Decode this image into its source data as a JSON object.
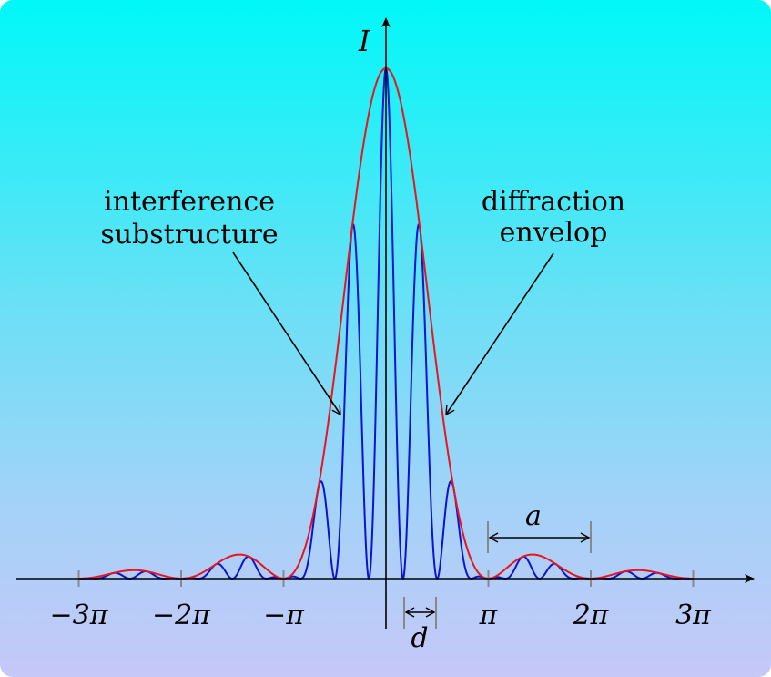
{
  "colors": {
    "envelope": "#e8141e",
    "substructure": "#0a14d2",
    "axis": "#000000",
    "tick": "#888888",
    "background_top": "#00f8f8",
    "background_bottom": "#c6c8f8"
  },
  "labels": {
    "y_axis": "I",
    "interference_line1": "interference",
    "interference_line2": "substructure",
    "diffraction_line1": "diffraction",
    "diffraction_line2": "envelop",
    "a": "a",
    "d": "d"
  },
  "ticks": [
    {
      "value": -3,
      "label": "−3π"
    },
    {
      "value": -2,
      "label": "−2π"
    },
    {
      "value": -1,
      "label": "−π"
    },
    {
      "value": 1,
      "label": "π"
    },
    {
      "value": 2,
      "label": "2π"
    },
    {
      "value": 3,
      "label": "3π"
    }
  ],
  "physics": {
    "envelope": "sinc squared of x (single-slit diffraction)",
    "substructure": "envelope multiplied by cos squared of interference phase",
    "fringes_per_pi": 3,
    "x_range_pi": [
      -3,
      3
    ]
  }
}
